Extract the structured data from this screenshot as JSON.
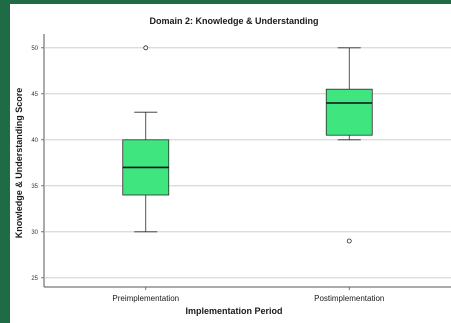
{
  "chart_data": {
    "type": "box",
    "title": "Domain 2: Knowledge & Understanding",
    "xlabel": "Implementation Period",
    "ylabel": "Knowledge & Understanding Score",
    "ylim": [
      24,
      51.5
    ],
    "yticks": [
      25,
      30,
      35,
      40,
      45,
      50
    ],
    "grid": "horizontal",
    "categories": [
      "Preimplementation",
      "Postimplementation"
    ],
    "boxes": [
      {
        "category": "Preimplementation",
        "min": 30,
        "q1": 34,
        "median": 37,
        "q3": 40,
        "max": 43,
        "outliers": [
          50
        ]
      },
      {
        "category": "Postimplementation",
        "min": 40,
        "q1": 40.5,
        "median": 44,
        "q3": 45.5,
        "max": 50,
        "outliers": [
          29
        ]
      }
    ],
    "colors": {
      "box_fill": "#3fe57f",
      "box_stroke": "#2b2b2b",
      "grid": "#c8c8c8",
      "background_border": "#1f6b45"
    }
  }
}
